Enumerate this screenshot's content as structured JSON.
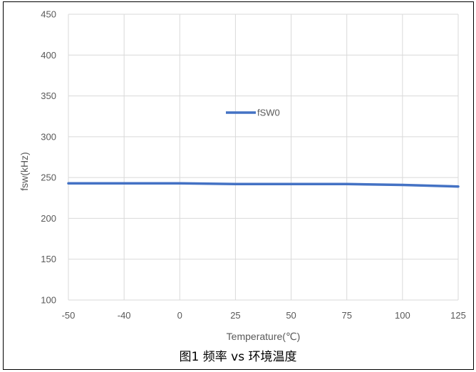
{
  "chart_data": {
    "type": "line",
    "xlabel": "Temperature(℃)",
    "ylabel": "fsw(kHz)",
    "x_ticks": [
      -50,
      -40,
      0,
      25,
      50,
      75,
      100,
      125
    ],
    "y_ticks": [
      100,
      150,
      200,
      250,
      300,
      350,
      400,
      450
    ],
    "ylim": [
      100,
      450
    ],
    "grid": true,
    "legend_position": "center-top",
    "series": [
      {
        "name": "fSW0",
        "color": "#4472C4",
        "x": [
          -50,
          -40,
          0,
          25,
          50,
          75,
          100,
          125
        ],
        "values": [
          243,
          243,
          243,
          242,
          242,
          242,
          241,
          239
        ]
      }
    ]
  },
  "caption": "图1 频率 vs 环境温度"
}
